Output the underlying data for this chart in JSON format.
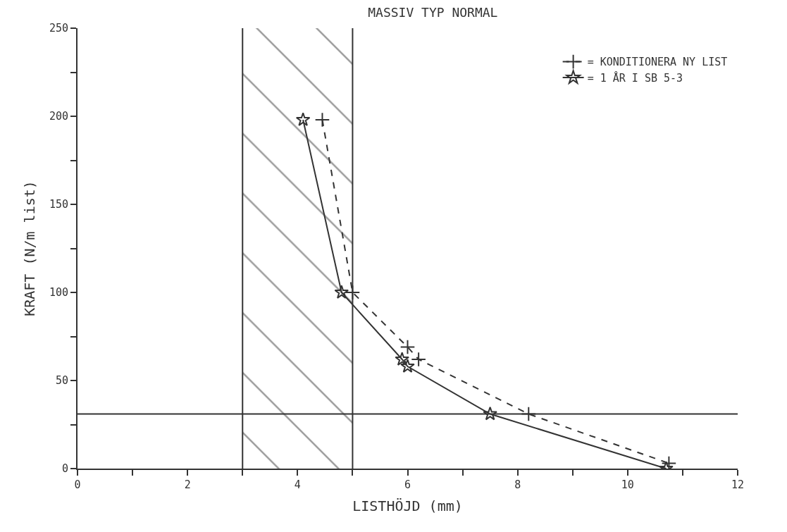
{
  "chart_data": {
    "type": "line",
    "title": "MASSIV TYP NORMAL",
    "xlabel": "LISTHÖJD (mm)",
    "ylabel": "KRAFT (N/m list)",
    "xlim": [
      0,
      12
    ],
    "ylim": [
      0,
      250
    ],
    "xticks": [
      0,
      {
        "value": 1,
        "label": null
      },
      2,
      {
        "value": 3,
        "label": null
      },
      4,
      {
        "value": 5,
        "label": null
      },
      6,
      {
        "value": 7,
        "label": null
      },
      8,
      {
        "value": 9,
        "label": null
      },
      10,
      {
        "value": 11,
        "label": null
      },
      12
    ],
    "yticks": [
      0,
      {
        "value": 25,
        "label": null
      },
      50,
      {
        "value": 75,
        "label": null
      },
      100,
      {
        "value": 125,
        "label": null
      },
      150,
      {
        "value": 175,
        "label": null
      },
      200,
      {
        "value": 225,
        "label": null
      },
      250
    ],
    "legend": "top right",
    "series": [
      {
        "name": "= KONDITIONERA NY LIST",
        "color": "#333333",
        "line_style": "dashed",
        "marker": "cross",
        "x": [
          4.45,
          5.0,
          6.0,
          6.2,
          8.2,
          10.75
        ],
        "values": [
          198,
          100,
          69,
          62,
          31,
          3
        ]
      },
      {
        "name": "= 1 ÅR I SB 5-3",
        "color": "#333333",
        "line_style": "solid",
        "marker": "star",
        "x": [
          4.1,
          4.8,
          5.9,
          6.0,
          7.5,
          10.7
        ],
        "values": [
          198,
          100,
          62,
          58,
          31,
          0
        ]
      }
    ],
    "ref_lines": [
      {
        "axis": "y",
        "value": 31,
        "color": "#333333"
      },
      {
        "axis": "x",
        "value": 3,
        "color": "#333333"
      },
      {
        "axis": "x",
        "value": 5,
        "color": "#333333"
      }
    ],
    "bands": [
      {
        "axis": "x",
        "from": 3,
        "to": 5,
        "color": "#333333"
      }
    ]
  }
}
